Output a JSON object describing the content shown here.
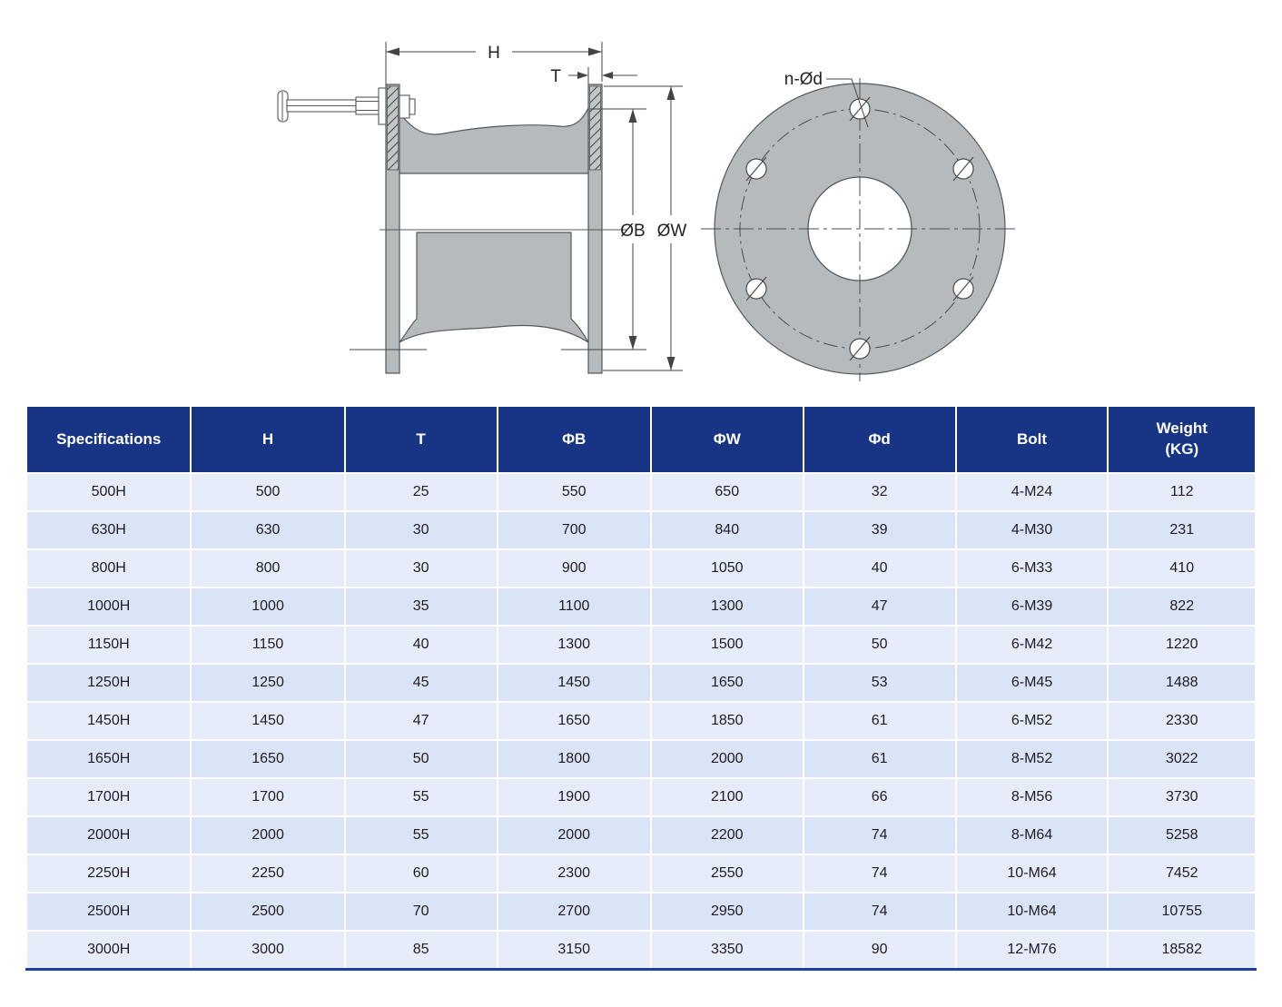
{
  "diagram": {
    "colors": {
      "fill": "#b7babd",
      "stroke": "#55585b"
    },
    "side_view": {
      "dim_h": "H",
      "dim_t": "T",
      "dim_b": "ØB",
      "dim_w": "ØW"
    },
    "front_view": {
      "hole_label": "n-Ød"
    }
  },
  "table": {
    "colors": {
      "header_bg": "#173584",
      "row_light": "#e7ecfb",
      "row_dark": "#dbe3f7",
      "bottom_border": "#1e3faa"
    },
    "columns": [
      [
        "Specifications"
      ],
      [
        "H"
      ],
      [
        "T"
      ],
      [
        "ΦB"
      ],
      [
        "ΦW"
      ],
      [
        "Φd"
      ],
      [
        "Bolt"
      ],
      [
        "Weight",
        "(KG)"
      ]
    ],
    "rows": [
      [
        "500H",
        "500",
        "25",
        "550",
        "650",
        "32",
        "4-M24",
        "112"
      ],
      [
        "630H",
        "630",
        "30",
        "700",
        "840",
        "39",
        "4-M30",
        "231"
      ],
      [
        "800H",
        "800",
        "30",
        "900",
        "1050",
        "40",
        "6-M33",
        "410"
      ],
      [
        "1000H",
        "1000",
        "35",
        "1100",
        "1300",
        "47",
        "6-M39",
        "822"
      ],
      [
        "1150H",
        "1150",
        "40",
        "1300",
        "1500",
        "50",
        "6-M42",
        "1220"
      ],
      [
        "1250H",
        "1250",
        "45",
        "1450",
        "1650",
        "53",
        "6-M45",
        "1488"
      ],
      [
        "1450H",
        "1450",
        "47",
        "1650",
        "1850",
        "61",
        "6-M52",
        "2330"
      ],
      [
        "1650H",
        "1650",
        "50",
        "1800",
        "2000",
        "61",
        "8-M52",
        "3022"
      ],
      [
        "1700H",
        "1700",
        "55",
        "1900",
        "2100",
        "66",
        "8-M56",
        "3730"
      ],
      [
        "2000H",
        "2000",
        "55",
        "2000",
        "2200",
        "74",
        "8-M64",
        "5258"
      ],
      [
        "2250H",
        "2250",
        "60",
        "2300",
        "2550",
        "74",
        "10-M64",
        "7452"
      ],
      [
        "2500H",
        "2500",
        "70",
        "2700",
        "2950",
        "74",
        "10-M64",
        "10755"
      ],
      [
        "3000H",
        "3000",
        "85",
        "3150",
        "3350",
        "90",
        "12-M76",
        "18582"
      ]
    ]
  }
}
